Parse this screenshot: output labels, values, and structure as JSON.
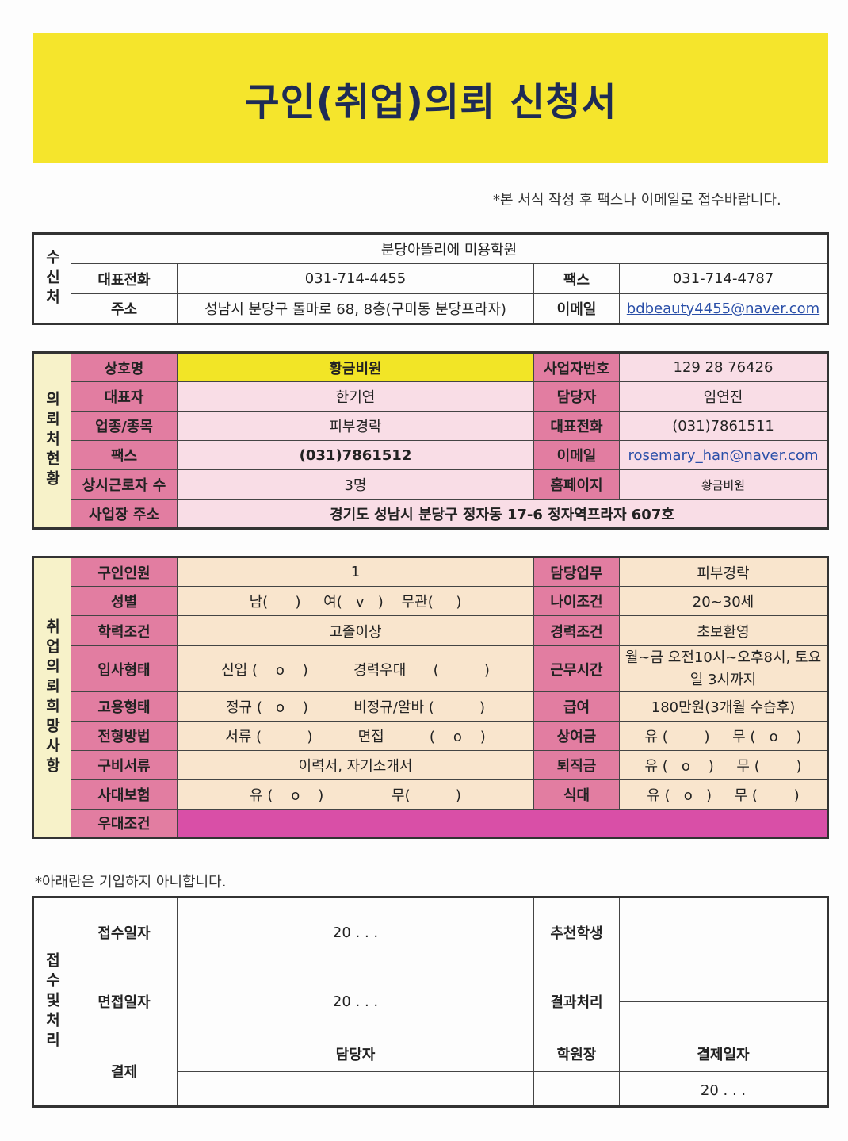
{
  "title": "구인(취업)의뢰 신청서",
  "top_note": "*본 서식 작성 후 팩스나 이메일로 접수바랍니다.",
  "recipient": {
    "side": "수신처",
    "name": "분당아뜰리에 미용학원",
    "phone_label": "대표전화",
    "phone": "031-714-4455",
    "fax_label": "팩스",
    "fax": "031-714-4787",
    "address_label": "주소",
    "address": "성남시 분당구 돌마로 68, 8층(구미동 분당프라자)",
    "email_label": "이메일",
    "email": "bdbeauty4455@naver.com"
  },
  "requester": {
    "side": "의뢰처현황",
    "rows": [
      {
        "l1": "상호명",
        "v1": "황금비원",
        "l2": "사업자번호",
        "v2": "129 28 76426"
      },
      {
        "l1": "대표자",
        "v1": "한기연",
        "l2": "담당자",
        "v2": "임연진"
      },
      {
        "l1": "업종/종목",
        "v1": "피부경락",
        "l2": "대표전화",
        "v2": "(031)7861511"
      },
      {
        "l1": "팩스",
        "v1": "(031)7861512",
        "l2": "이메일",
        "v2": "rosemary_han@naver.com"
      },
      {
        "l1": "상시근로자 수",
        "v1": "3명",
        "l2": "홈페이지",
        "v2": "황금비원"
      }
    ],
    "address_label": "사업장 주소",
    "address": "경기도 성남시 분당구 정자동 17-6 정자역프라자 607호"
  },
  "wishes": {
    "side": "취업의뢰희망사항",
    "rows": [
      {
        "l1": "구인인원",
        "v1": "1",
        "l2": "담당업무",
        "v2": "피부경락"
      },
      {
        "l1": "성별",
        "v1": "남(      )     여(   v   )    무관(     )",
        "l2": "나이조건",
        "v2": "20~30세"
      },
      {
        "l1": "학력조건",
        "v1": "고졸이상",
        "l2": "경력조건",
        "v2": "초보환영"
      },
      {
        "l1": "입사형태",
        "v1": "신입 (    ο    )          경력우대      (          )",
        "l2": "근무시간",
        "v2": "월~금 오전10시~오후8시, 토요일 3시까지"
      },
      {
        "l1": "고용형태",
        "v1": "정규 (   ο    )          비정규/알바 (          )",
        "l2": "급여",
        "v2": "180만원(3개월 수습후)"
      },
      {
        "l1": "전형방법",
        "v1": "서류 (          )          면접          (    ο    )",
        "l2": "상여금",
        "v2": "유 (        )     무 (   ο    )"
      },
      {
        "l1": "구비서류",
        "v1": "이력서, 자기소개서",
        "l2": "퇴직금",
        "v2": "유 (   ο    )     무 (        )"
      },
      {
        "l1": "사대보험",
        "v1": "유 (    ο    )               무(          )",
        "l2": "식대",
        "v2": "유 (   ο   )     무 (        )"
      }
    ],
    "preference_label": "우대조건",
    "preference": ""
  },
  "office_note": "*아래란은 기입하지 아니합니다.",
  "office": {
    "side": "접수및처리",
    "received_label": "접수일자",
    "received": "20   .     .     .",
    "recommended_label": "추천학생",
    "interview_label": "면접일자",
    "interview": "20   .     .     .",
    "result_label": "결과처리",
    "approval_label": "결제",
    "manager_label": "담당자",
    "director_label": "학원장",
    "approval_date_label": "결제일자",
    "approval_date": "20   .     .     ."
  },
  "colors": {
    "banner": "#f5e52c",
    "label": "#e27da1",
    "requester_cell": "#f9dde6",
    "wish_cell": "#f9e5cd",
    "preference": "#d94fa7"
  }
}
